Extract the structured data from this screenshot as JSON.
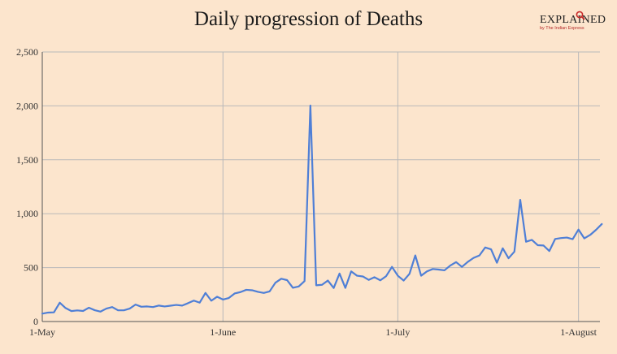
{
  "title": "Daily progression of Deaths",
  "brand": {
    "wordmark": "EXPLAINED",
    "subtext": "by The Indian Express",
    "accent_color": "#c62828"
  },
  "colors": {
    "background": "#fce5cd",
    "line": "#4f7fd6",
    "grid": "#b9b9b9",
    "axis": "#555555"
  },
  "chart_data": {
    "type": "line",
    "title": "Daily progression of Deaths",
    "xlabel": "",
    "ylabel": "",
    "x_start": "1-May",
    "x_end": "6-August",
    "ylim": [
      0,
      2500
    ],
    "grid": true,
    "y_ticks": [
      0,
      500,
      1000,
      1500,
      2000,
      2500
    ],
    "y_tick_labels": [
      "0",
      "500",
      "1,000",
      "1,500",
      "2,000",
      "2,500"
    ],
    "x_ticks": [
      {
        "label": "1-May",
        "day": 0
      },
      {
        "label": "1-June",
        "day": 31
      },
      {
        "label": "1-July",
        "day": 61
      },
      {
        "label": "1-August",
        "day": 92
      }
    ],
    "series": [
      {
        "values": [
          73,
          83,
          85,
          175,
          125,
          97,
          103,
          98,
          128,
          105,
          92,
          120,
          134,
          104,
          104,
          120,
          157,
          137,
          140,
          134,
          148,
          140,
          147,
          154,
          148,
          170,
          194,
          175,
          265,
          193,
          230,
          204,
          218,
          260,
          273,
          294,
          290,
          275,
          265,
          279,
          360,
          397,
          384,
          313,
          325,
          375,
          2003,
          336,
          341,
          380,
          311,
          445,
          312,
          465,
          425,
          418,
          386,
          411,
          382,
          421,
          507,
          425,
          380,
          442,
          613,
          425,
          465,
          487,
          482,
          475,
          519,
          551,
          507,
          553,
          590,
          613,
          687,
          670,
          545,
          679,
          587,
          648,
          1129,
          740,
          757,
          708,
          705,
          654,
          766,
          774,
          779,
          764,
          853,
          771,
          803,
          850,
          904
        ]
      }
    ]
  }
}
